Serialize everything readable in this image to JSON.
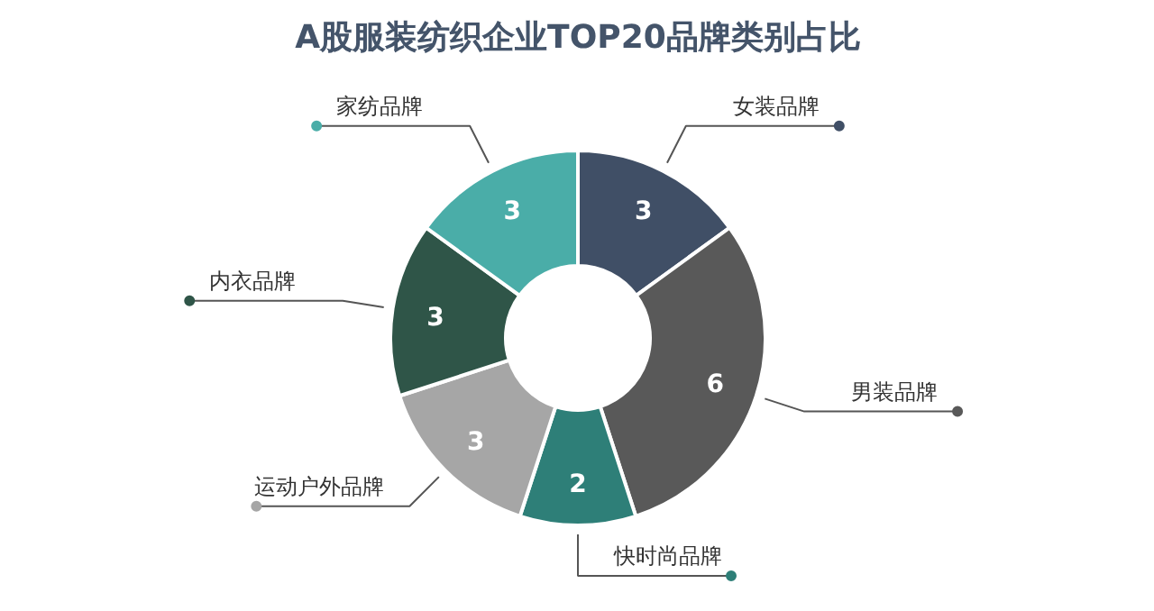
{
  "chart_data": {
    "type": "donut",
    "title": "A股服装纺织企业TOP20品牌类别占比",
    "categories": [
      "女装品牌",
      "男装品牌",
      "快时尚品牌",
      "运动户外品牌",
      "内衣品牌",
      "家纺品牌"
    ],
    "values": [
      3,
      6,
      2,
      3,
      3,
      3
    ],
    "colors": [
      "#404f66",
      "#595959",
      "#2e7f78",
      "#a6a6a6",
      "#2f5548",
      "#4aada8"
    ],
    "data_labels": true
  }
}
